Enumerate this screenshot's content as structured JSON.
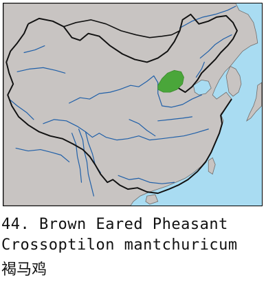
{
  "map": {
    "colors": {
      "sea": "#a9dcf2",
      "land": "#c8c4c2",
      "river": "#1f5fa8",
      "border": "#111111",
      "range": "#4aa63a"
    },
    "range_region": "Brown Eared Pheasant range"
  },
  "caption": {
    "common_name": "44. Brown Eared Pheasant",
    "scientific_name": "Crossoptilon mantchuricum",
    "chinese_name": "褐马鸡"
  }
}
